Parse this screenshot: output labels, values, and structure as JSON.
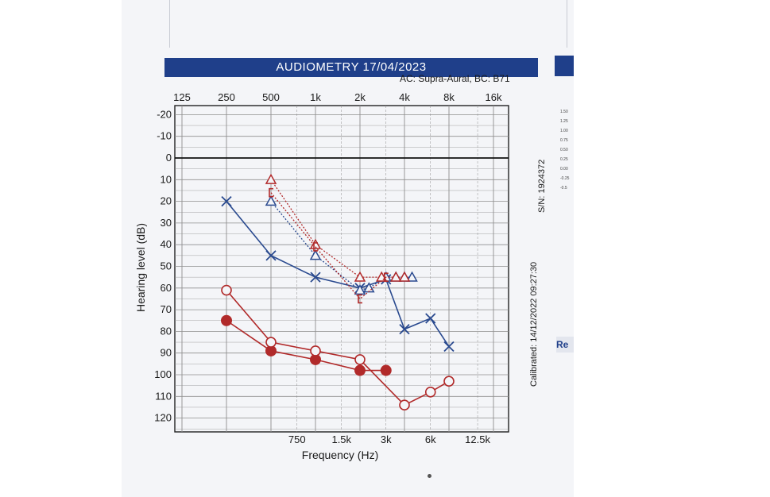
{
  "header": {
    "title": "AUDIOMETRY  17/04/2023",
    "subtitle": "AC: Supra-Aural, BC: B71"
  },
  "side_labels": {
    "serial": "S/N: 1924372",
    "calibrated": "Calibrated: 14/12/2022 09:27:30"
  },
  "right_panel": {
    "ticks": [
      "1.50",
      "1.25",
      "1.00",
      "0.75",
      "0.50",
      "0.25",
      "0.00",
      "-0.25",
      "-0.5"
    ],
    "box_label": "Re"
  },
  "colors": {
    "right_ear": "#b12a2a",
    "left_ear": "#2a4a8f",
    "grid": "#8e8e8e",
    "banner": "#1f3f8a"
  },
  "chart_data": {
    "type": "line",
    "xlabel": "Frequency (Hz)",
    "ylabel": "Hearing level (dB)",
    "x_scale": "log",
    "y_inverted": true,
    "ylim": [
      -25,
      125
    ],
    "top_ticks": [
      {
        "hz": 125,
        "label": "125"
      },
      {
        "hz": 250,
        "label": "250"
      },
      {
        "hz": 500,
        "label": "500"
      },
      {
        "hz": 1000,
        "label": "1k"
      },
      {
        "hz": 2000,
        "label": "2k"
      },
      {
        "hz": 4000,
        "label": "4k"
      },
      {
        "hz": 8000,
        "label": "8k"
      },
      {
        "hz": 16000,
        "label": "16k"
      }
    ],
    "bottom_ticks": [
      {
        "hz": 750,
        "label": "750"
      },
      {
        "hz": 1500,
        "label": "1.5k"
      },
      {
        "hz": 3000,
        "label": "3k"
      },
      {
        "hz": 6000,
        "label": "6k"
      },
      {
        "hz": 12500,
        "label": "12.5k"
      }
    ],
    "y_ticks": [
      {
        "db": -20,
        "label": "-20"
      },
      {
        "db": -10,
        "label": "-10"
      },
      {
        "db": 0,
        "label": "0"
      },
      {
        "db": 10,
        "label": "10"
      },
      {
        "db": 20,
        "label": "20"
      },
      {
        "db": 30,
        "label": "30"
      },
      {
        "db": 40,
        "label": "40"
      },
      {
        "db": 50,
        "label": "50"
      },
      {
        "db": 60,
        "label": "60"
      },
      {
        "db": 70,
        "label": "70"
      },
      {
        "db": 80,
        "label": "80"
      },
      {
        "db": 90,
        "label": "90"
      },
      {
        "db": 100,
        "label": "100"
      },
      {
        "db": 110,
        "label": "110"
      },
      {
        "db": 120,
        "label": "120"
      }
    ],
    "zero_line": 0,
    "series": [
      {
        "symbol": "cross",
        "ear": "left",
        "color": "#2a4a8f",
        "line": "solid",
        "points": [
          {
            "x": 250,
            "y": 20
          },
          {
            "x": 500,
            "y": 45
          },
          {
            "x": 1000,
            "y": 55
          },
          {
            "x": 2000,
            "y": 60
          },
          {
            "x": 3000,
            "y": 56
          },
          {
            "x": 4000,
            "y": 79
          },
          {
            "x": 6000,
            "y": 74
          },
          {
            "x": 8000,
            "y": 87
          }
        ]
      },
      {
        "symbol": "triangle",
        "ear": "left",
        "color": "#2a4a8f",
        "line": "dotted",
        "points": [
          {
            "x": 500,
            "y": 20
          },
          {
            "x": 1000,
            "y": 45
          },
          {
            "x": 2000,
            "y": 61
          },
          {
            "x": 2300,
            "y": 60
          },
          {
            "x": 3000,
            "y": 55
          },
          {
            "x": 3500,
            "y": 55
          },
          {
            "x": 4000,
            "y": 55
          },
          {
            "x": 4500,
            "y": 55
          }
        ]
      },
      {
        "symbol": "triangle",
        "ear": "right",
        "color": "#b12a2a",
        "line": "dotted",
        "points": [
          {
            "x": 500,
            "y": 10
          },
          {
            "x": 1000,
            "y": 40
          },
          {
            "x": 2000,
            "y": 55
          },
          {
            "x": 2800,
            "y": 55
          },
          {
            "x": 3500,
            "y": 55
          },
          {
            "x": 4000,
            "y": 55
          }
        ]
      },
      {
        "symbol": "bracket",
        "ear": "right",
        "color": "#b12a2a",
        "line": "dotted",
        "points": [
          {
            "x": 500,
            "y": 16
          },
          {
            "x": 1000,
            "y": 41
          },
          {
            "x": 2000,
            "y": 65
          },
          {
            "x": 3000,
            "y": 55
          }
        ]
      },
      {
        "symbol": "filled-circle",
        "ear": "right",
        "color": "#b12a2a",
        "line": "solid",
        "points": [
          {
            "x": 250,
            "y": 75
          },
          {
            "x": 500,
            "y": 89
          },
          {
            "x": 1000,
            "y": 93
          },
          {
            "x": 2000,
            "y": 98
          },
          {
            "x": 3000,
            "y": 98
          }
        ]
      },
      {
        "symbol": "open-circle",
        "ear": "right",
        "color": "#b12a2a",
        "line": "solid",
        "points": [
          {
            "x": 250,
            "y": 61
          },
          {
            "x": 500,
            "y": 85
          },
          {
            "x": 1000,
            "y": 89
          },
          {
            "x": 2000,
            "y": 93
          },
          {
            "x": 4000,
            "y": 114
          },
          {
            "x": 6000,
            "y": 108
          },
          {
            "x": 8000,
            "y": 103
          }
        ]
      }
    ]
  }
}
